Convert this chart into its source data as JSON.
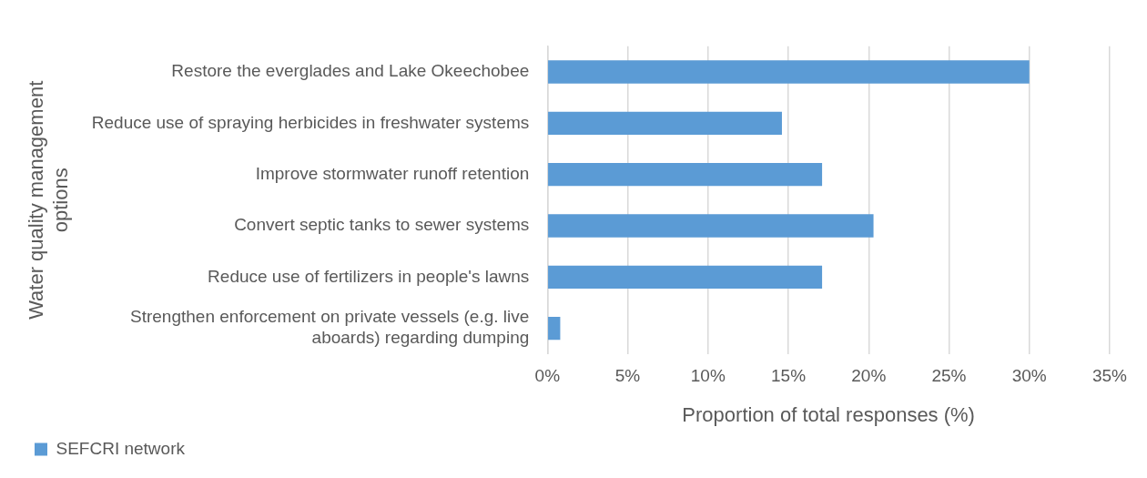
{
  "chart_data": {
    "type": "bar",
    "orientation": "horizontal",
    "xlabel": "Proportion of total responses (%)",
    "ylabel": "Water quality management options",
    "categories": [
      "Restore the everglades and Lake Okeechobee",
      "Reduce use of spraying herbicides in freshwater systems",
      "Improve stormwater runoff retention",
      "Convert septic tanks to sewer systems",
      "Reduce use of fertilizers in people's lawns",
      "Strengthen enforcement on private vessels (e.g. live aboards) regarding dumping"
    ],
    "series": [
      {
        "name": "SEFCRI network",
        "color": "#5b9bd5",
        "values": [
          30.0,
          14.6,
          17.1,
          20.3,
          17.1,
          0.8
        ]
      }
    ],
    "xlim": [
      0,
      35
    ],
    "xticks": [
      {
        "value": 0,
        "label": "0%"
      },
      {
        "value": 5,
        "label": "5%"
      },
      {
        "value": 10,
        "label": "10%"
      },
      {
        "value": 15,
        "label": "15%"
      },
      {
        "value": 20,
        "label": "20%"
      },
      {
        "value": 25,
        "label": "25%"
      },
      {
        "value": 30,
        "label": "30%"
      },
      {
        "value": 35,
        "label": "35%"
      }
    ],
    "grid": "x",
    "legend": "bottom"
  }
}
